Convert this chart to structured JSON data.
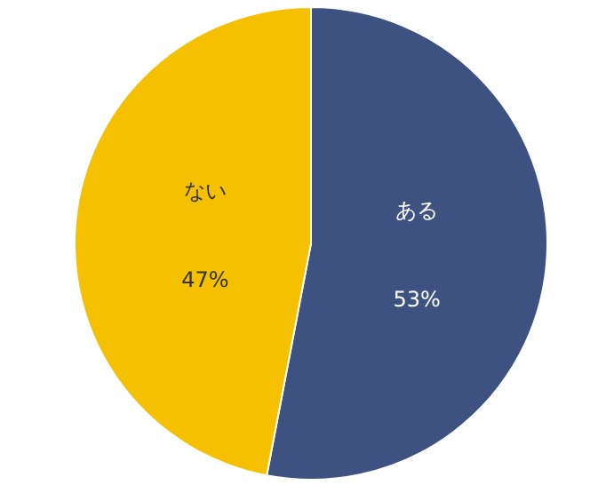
{
  "chart_data": {
    "type": "pie",
    "categories": [
      "ある",
      "ない"
    ],
    "values": [
      53,
      47
    ],
    "colors": [
      "#3e5282",
      "#f5c000"
    ],
    "value_labels": [
      "53%",
      "47%"
    ]
  }
}
